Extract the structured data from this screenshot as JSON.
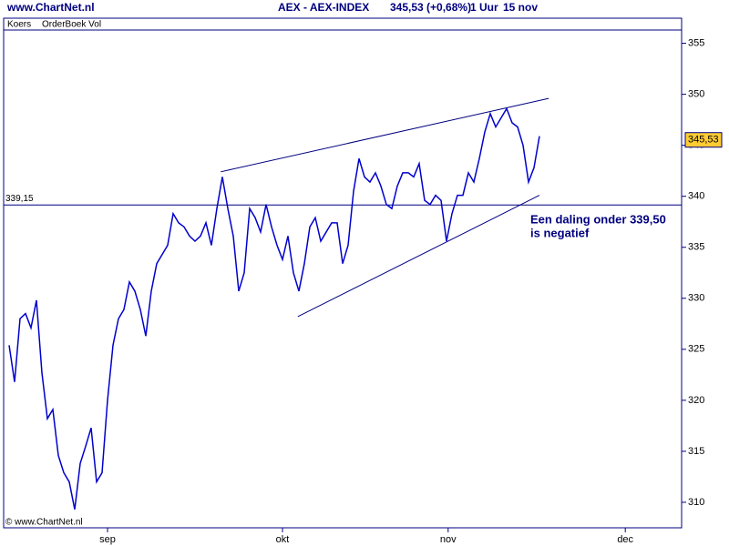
{
  "header": {
    "site": "www.ChartNet.nl",
    "instrument": "AEX - AEX-INDEX",
    "quote": "345,53 (+0,68%)",
    "interval": "1 Uur",
    "date": "15 nov"
  },
  "tabs": [
    "Koers",
    "OrderBoek Vol"
  ],
  "footer": "© www.ChartNet.nl",
  "chart_data": {
    "type": "line",
    "color": "#0000cc",
    "x": [
      1,
      2,
      3,
      4,
      5,
      6,
      7,
      8,
      9,
      10,
      11,
      12,
      13,
      14,
      15,
      16,
      17,
      18,
      19,
      20,
      21,
      22,
      23,
      24,
      25,
      26,
      27,
      28,
      29,
      30,
      31,
      32,
      33,
      34,
      35,
      36,
      37,
      38,
      39,
      40,
      41,
      42,
      43,
      44,
      45,
      46,
      47,
      48,
      49,
      50,
      51,
      52,
      53,
      54,
      55,
      56,
      57,
      58,
      59,
      60,
      61,
      62,
      63,
      64,
      65,
      66,
      67,
      68,
      69,
      70,
      71,
      72,
      73,
      74,
      75,
      76,
      77,
      78,
      79,
      80,
      81,
      82,
      83,
      84,
      85,
      86,
      87,
      88,
      89,
      90,
      91,
      92,
      93,
      94,
      95,
      96,
      97,
      98
    ],
    "values": [
      325.4,
      321.8,
      328.0,
      328.5,
      327.1,
      329.8,
      322.7,
      318.2,
      319.1,
      314.6,
      312.9,
      312.0,
      309.3,
      313.8,
      315.5,
      317.3,
      312.0,
      312.9,
      320.0,
      325.4,
      328.0,
      328.9,
      331.6,
      330.7,
      328.9,
      326.3,
      330.7,
      333.4,
      334.3,
      335.2,
      338.3,
      337.4,
      337.0,
      336.1,
      335.6,
      336.1,
      337.4,
      335.2,
      338.8,
      341.9,
      338.8,
      336.1,
      330.7,
      332.5,
      338.8,
      337.9,
      336.5,
      339.2,
      337.0,
      335.2,
      333.8,
      336.1,
      332.5,
      330.7,
      333.4,
      337.0,
      337.9,
      335.6,
      336.5,
      337.4,
      337.4,
      333.4,
      335.2,
      340.5,
      343.7,
      341.9,
      341.4,
      342.3,
      341.0,
      339.2,
      338.8,
      341.0,
      342.3,
      342.3,
      341.9,
      343.2,
      339.6,
      339.2,
      340.1,
      339.6,
      335.6,
      338.3,
      340.1,
      340.1,
      342.3,
      341.4,
      343.7,
      346.3,
      348.1,
      346.8,
      347.7,
      348.6,
      347.2,
      346.8,
      345.0,
      341.4,
      342.8,
      345.9
    ],
    "xlim": [
      0,
      124
    ],
    "xticks": [
      {
        "value": 19,
        "label": "sep"
      },
      {
        "value": 51,
        "label": "okt"
      },
      {
        "value": 81.3,
        "label": "nov"
      },
      {
        "value": 113.7,
        "label": "dec"
      }
    ],
    "ylim": [
      307.5,
      356.3
    ],
    "yticks": [
      310,
      315,
      320,
      325,
      330,
      335,
      340,
      345,
      350,
      355
    ],
    "hline": {
      "value": 339.15,
      "label": "339,15"
    },
    "last": {
      "value": 345.53,
      "label": "345,53"
    },
    "trend_lines": [
      {
        "x": [
          39.7,
          99.7
        ],
        "y": [
          342.4,
          349.6
        ]
      },
      {
        "x": [
          53.8,
          98
        ],
        "y": [
          328.2,
          340.1
        ]
      }
    ],
    "annotation": [
      "Een daling onder 339,50",
      "is negatief"
    ]
  }
}
